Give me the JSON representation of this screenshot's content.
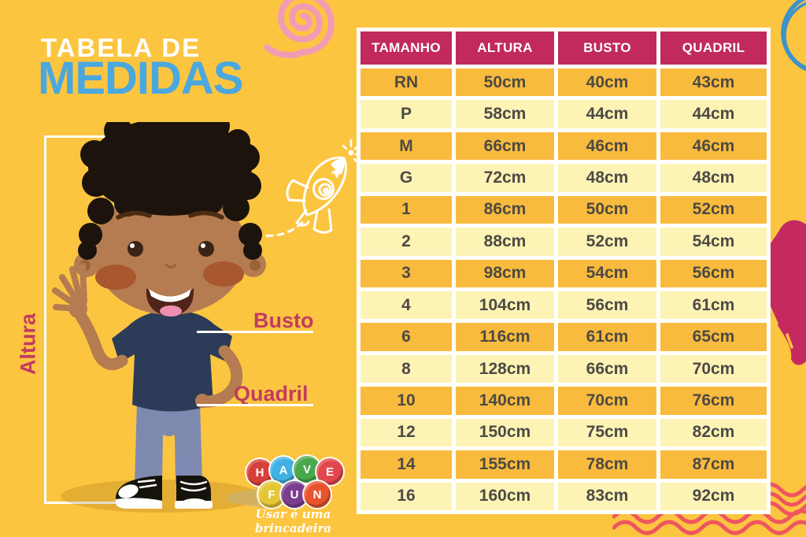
{
  "page": {
    "background_color": "#FCC540"
  },
  "title": {
    "line1": "TABELA DE",
    "line2": "MEDIDAS"
  },
  "colors": {
    "title_line1": "#FFFFFF",
    "title_line2": "#4AA8DF",
    "label": "#C23B61",
    "bracket_line": "#FFFFFF",
    "waves": "#EF5560",
    "spiral": "#F29CB4",
    "circle_scribble": "#3D93CB",
    "heart": "#C42A60"
  },
  "illustration": {
    "labels": {
      "height": "Altura",
      "bust": "Busto",
      "hip": "Quadril"
    },
    "colors": {
      "skin": "#B47C50",
      "hair": "#1B130C",
      "shirt": "#2C3B58",
      "jeans": "#7E89B0",
      "blush": "#A8572F",
      "shoe": "#16130D",
      "shadow": "rgba(120,72,0,0.18)"
    }
  },
  "size_table": {
    "columns": [
      "TAMANHO",
      "ALTURA",
      "BUSTO",
      "QUADRIL"
    ],
    "rows": [
      [
        "RN",
        "50cm",
        "40cm",
        "43cm"
      ],
      [
        "P",
        "58cm",
        "44cm",
        "44cm"
      ],
      [
        "M",
        "66cm",
        "46cm",
        "46cm"
      ],
      [
        "G",
        "72cm",
        "48cm",
        "48cm"
      ],
      [
        "1",
        "86cm",
        "50cm",
        "52cm"
      ],
      [
        "2",
        "88cm",
        "52cm",
        "54cm"
      ],
      [
        "3",
        "98cm",
        "54cm",
        "56cm"
      ],
      [
        "4",
        "104cm",
        "56cm",
        "61cm"
      ],
      [
        "6",
        "116cm",
        "61cm",
        "65cm"
      ],
      [
        "8",
        "128cm",
        "66cm",
        "70cm"
      ],
      [
        "10",
        "140cm",
        "70cm",
        "76cm"
      ],
      [
        "12",
        "150cm",
        "75cm",
        "82cm"
      ],
      [
        "14",
        "155cm",
        "78cm",
        "87cm"
      ],
      [
        "16",
        "160cm",
        "83cm",
        "92cm"
      ]
    ],
    "colors": {
      "header_bg": "#C12A5B",
      "header_text": "#FFFFFF",
      "row_dark": "#F9BB3D",
      "row_light": "#FCF3B5",
      "cell_text": "#4D4A45"
    }
  },
  "logo": {
    "balls": [
      {
        "letter": "H",
        "color": "#D7403A"
      },
      {
        "letter": "A",
        "color": "#41B1E3"
      },
      {
        "letter": "V",
        "color": "#48A94B"
      },
      {
        "letter": "E",
        "color": "#E2474E"
      },
      {
        "letter": "F",
        "color": "#E5C636"
      },
      {
        "letter": "U",
        "color": "#7B3D8E"
      },
      {
        "letter": "N",
        "color": "#E8542E"
      }
    ],
    "tagline": "Usar é uma brincadeira"
  }
}
